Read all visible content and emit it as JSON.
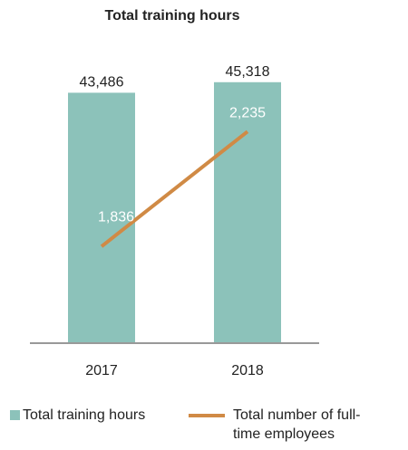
{
  "chart_data": {
    "type": "bar+line",
    "title": "Total training hours",
    "categories": [
      "2017",
      "2018"
    ],
    "ylim": [
      0,
      50000
    ],
    "y2lim": [
      1500,
      2500
    ],
    "series": [
      {
        "name": "Total training hours",
        "type": "bar",
        "color": "#8cc2ba",
        "values": [
          43486,
          45318
        ],
        "value_labels": [
          "43,486",
          "45,318"
        ]
      },
      {
        "name": "Total number of full-time employees",
        "type": "line",
        "axis": "y2",
        "color": "#d08a45",
        "values": [
          1836,
          2235
        ],
        "value_labels": [
          "1,836",
          "2,235"
        ]
      }
    ]
  }
}
